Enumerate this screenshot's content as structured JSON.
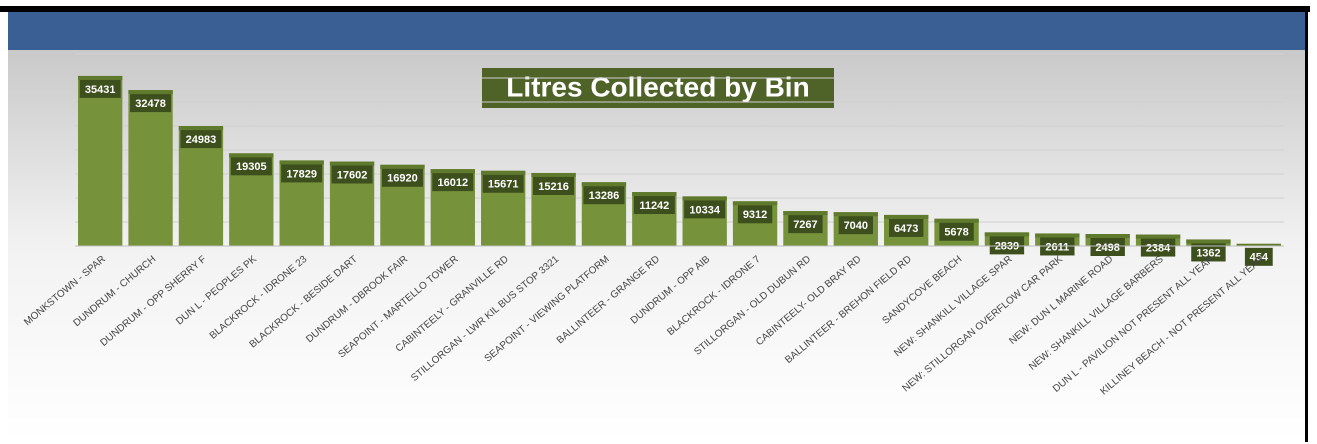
{
  "chart_data": {
    "type": "bar",
    "title": "Litres Collected by Bin",
    "categories": [
      "MONKSTOWN - SPAR",
      "DUNDRUM - CHURCH",
      "DUNDRUM - OPP SHERRY F",
      "DUN L - PEOPLES PK",
      "BLACKROCK - IDRONE 23",
      "BLACKROCK - BESIDE DART",
      "DUNDRUM - DBROOK FAIR",
      "SEAPOINT - MARTELLO TOWER",
      "CABINTEELY - GRANVILLE RD",
      "STILLORGAN - LWR KIL BUS STOP 3321",
      "SEAPOINT - VIEWING PLATFORM",
      "BALLINTEER - GRANGE RD",
      "DUNDRUM - OPP AIB",
      "BLACKROCK - IDRONE 7",
      "STILLORGAN - OLD DUBUN RD",
      "CABINTEELY- OLD BRAY RD",
      "BALLINTEER - BREHON FIELD RD",
      "SANDYCOVE BEACH",
      "NEW: SHANKILL VILLAGE SPAR",
      "NEW: STILLORGAN OVERFLOW CAR PARK",
      "NEW: DUN L MARINE ROAD",
      "NEW: SHANKILL VILLAGE BARBERS",
      "DUN L - PAVILION NOT PRESENT ALL YEAR",
      "KILLINEY BEACH - NOT PRESENT ALL YEAR"
    ],
    "values": [
      35431,
      32478,
      24983,
      19305,
      17829,
      17602,
      16920,
      16012,
      15671,
      15216,
      13286,
      11242,
      10334,
      9312,
      7267,
      7040,
      6473,
      5678,
      2839,
      2611,
      2498,
      2384,
      1362,
      454
    ],
    "color": "#76933c",
    "ylim": [
      0,
      40000
    ],
    "yticks": [
      0,
      5000,
      10000,
      15000,
      20000,
      25000,
      30000,
      35000,
      40000
    ],
    "grid": true
  }
}
